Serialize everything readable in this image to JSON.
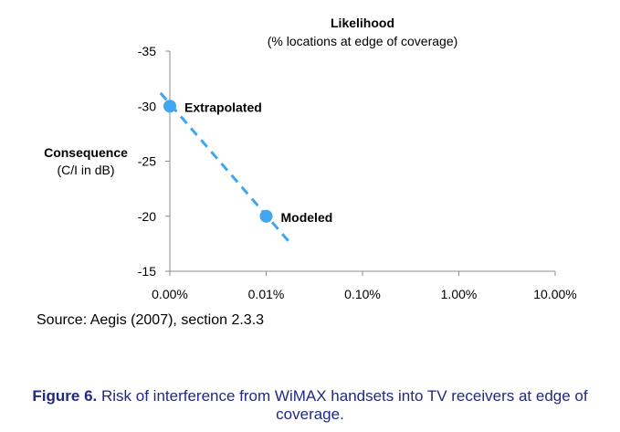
{
  "chart_data": {
    "type": "scatter",
    "title": "Likelihood",
    "subtitle": "(% locations at edge of coverage)",
    "xlabel": "",
    "ylabel": "Consequence",
    "ylabel_sub": "(C/I in dB)",
    "x_scale": "log",
    "x_ticks": [
      "0.00%",
      "0.01%",
      "0.10%",
      "1.00%",
      "10.00%"
    ],
    "y_ticks": [
      "-35",
      "-30",
      "-25",
      "-20",
      "-15"
    ],
    "ylim": [
      -35,
      -15
    ],
    "y_inverted": true,
    "x_axis_position": "bottom",
    "grid": false,
    "legend": "none",
    "series": [
      {
        "points": [
          {
            "label": "Extrapolated",
            "x": "0.001%",
            "y": -30
          },
          {
            "label": "Modeled",
            "x": "0.01%",
            "y": -20
          }
        ]
      }
    ],
    "trendline": {
      "style": "dashed",
      "from": {
        "x": "0.0008%",
        "y": -31.2
      },
      "to": {
        "x": "0.018%",
        "y": -17.5
      }
    },
    "colors": {
      "point": "#40a6ee",
      "trendline": "#40a6ee"
    }
  },
  "source": "Source: Aegis (2007), section 2.3.3",
  "caption": {
    "label": "Figure 6.",
    "text": "Risk of interference from WiMAX handsets into TV receivers at edge of coverage.",
    "color": "#1f2a80"
  }
}
